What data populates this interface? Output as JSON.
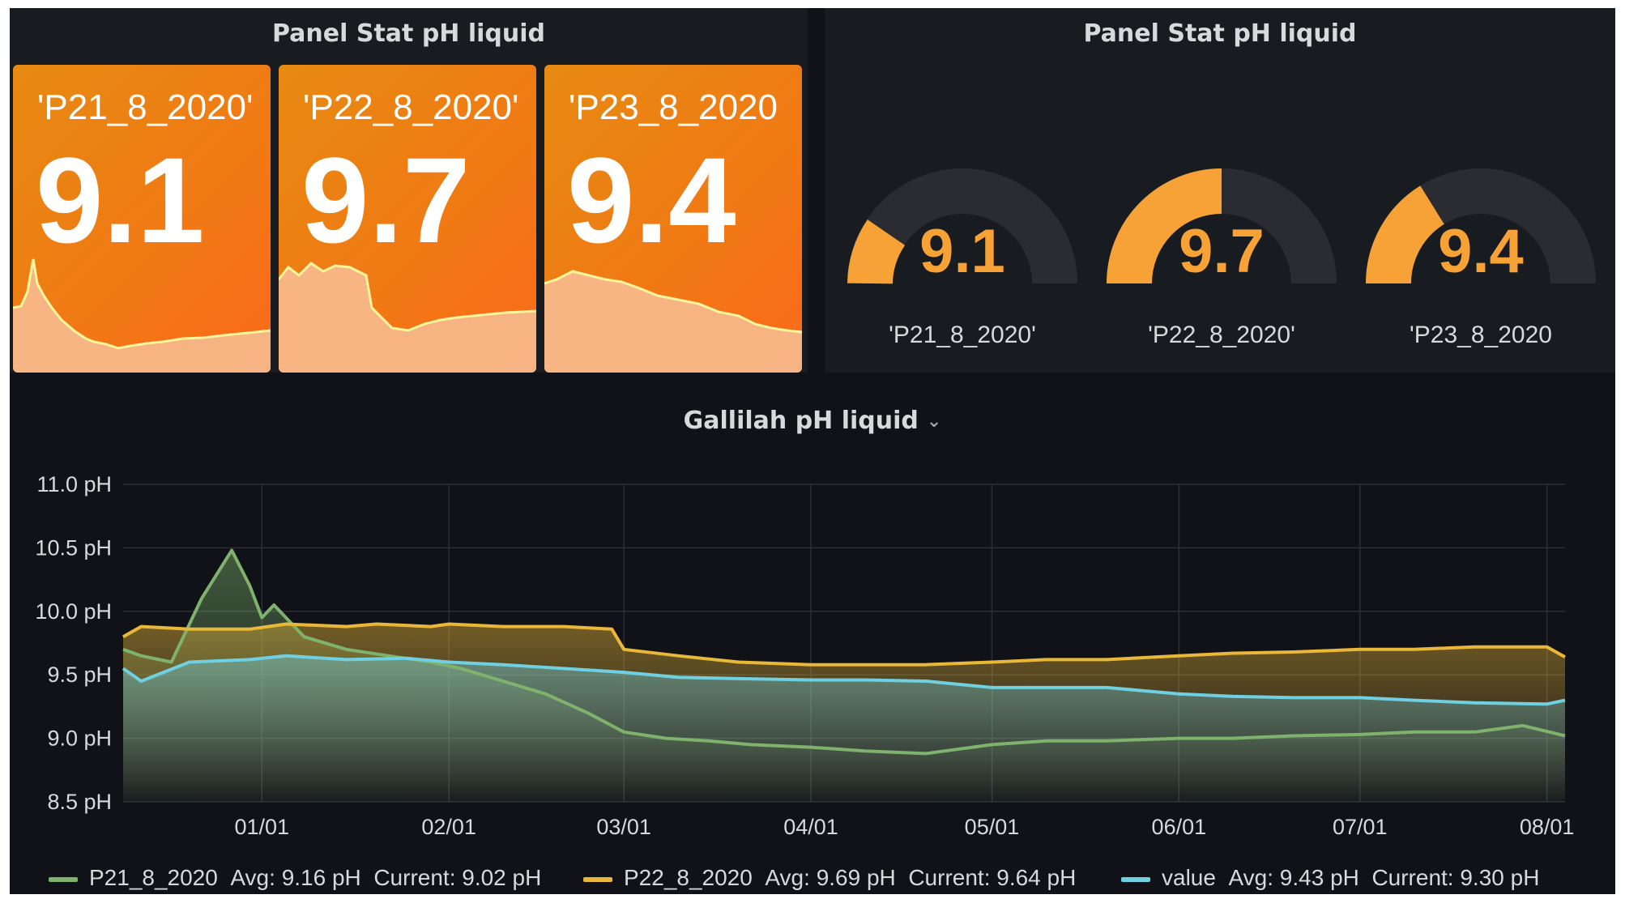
{
  "stat_panel": {
    "title": "Panel Stat pH liquid",
    "cards": [
      {
        "name": "'P21_8_2020'",
        "value": "9.1"
      },
      {
        "name": "'P22_8_2020'",
        "value": "9.7"
      },
      {
        "name": "'P23_8_2020",
        "value": "9.4"
      }
    ]
  },
  "gauge_panel": {
    "title": "Panel Stat pH liquid",
    "gauges": [
      {
        "name": "'P21_8_2020'",
        "value": "9.1",
        "fill_fraction": 0.2
      },
      {
        "name": "'P22_8_2020'",
        "value": "9.7",
        "fill_fraction": 0.55
      },
      {
        "name": "'P23_8_2020",
        "value": "9.4",
        "fill_fraction": 0.35
      }
    ]
  },
  "graph_panel": {
    "title": "Gallilah pH liquid",
    "chevron_icon": "chevron-down-icon"
  },
  "colors": {
    "background": "#111217",
    "panel": "#181b1f",
    "stat_orange": "#f07a14",
    "gauge_orange": "#f7a236",
    "sparkline": "#fff59d",
    "series_green": "#7eb26d",
    "series_yellow": "#eab839",
    "series_blue": "#6ed0e0"
  },
  "chart_data": {
    "type": "line",
    "title": "Gallilah pH liquid",
    "xlabel": "",
    "ylabel": "",
    "x_ticks": [
      "01/01",
      "02/01",
      "03/01",
      "04/01",
      "05/01",
      "06/01",
      "07/01",
      "08/01"
    ],
    "y_ticks": [
      "8.5 pH",
      "9.0 pH",
      "9.5 pH",
      "10.0 pH",
      "10.5 pH",
      "11.0 pH"
    ],
    "ylim": [
      8.5,
      11.0
    ],
    "xlim": [
      "2019-12-09",
      "2020-08-04"
    ],
    "grid": true,
    "legend_position": "bottom",
    "series": [
      {
        "name": "P21_8_2020",
        "color": "#7eb26d",
        "avg_label": "Avg: 9.16 pH",
        "current_label": "Current: 9.02 pH",
        "x": [
          "2019-12-09",
          "2019-12-12",
          "2019-12-17",
          "2019-12-22",
          "2019-12-27",
          "2019-12-30",
          "2020-01-01",
          "2020-01-03",
          "2020-01-08",
          "2020-01-15",
          "2020-01-22",
          "2020-01-29",
          "2020-02-03",
          "2020-02-10",
          "2020-02-17",
          "2020-02-24",
          "2020-03-01",
          "2020-03-08",
          "2020-03-15",
          "2020-03-22",
          "2020-04-01",
          "2020-04-10",
          "2020-04-20",
          "2020-05-01",
          "2020-05-10",
          "2020-05-20",
          "2020-06-01",
          "2020-06-10",
          "2020-06-20",
          "2020-07-01",
          "2020-07-10",
          "2020-07-20",
          "2020-07-28",
          "2020-08-04"
        ],
        "y": [
          9.7,
          9.65,
          9.6,
          10.1,
          10.48,
          10.2,
          9.95,
          10.05,
          9.8,
          9.7,
          9.65,
          9.6,
          9.55,
          9.45,
          9.35,
          9.2,
          9.05,
          9.0,
          8.98,
          8.95,
          8.93,
          8.9,
          8.88,
          8.95,
          8.98,
          8.98,
          9.0,
          9.0,
          9.02,
          9.03,
          9.05,
          9.05,
          9.1,
          9.02
        ]
      },
      {
        "name": "P22_8_2020",
        "color": "#eab839",
        "avg_label": "Avg: 9.69 pH",
        "current_label": "Current: 9.64 pH",
        "x": [
          "2019-12-09",
          "2019-12-12",
          "2019-12-20",
          "2019-12-30",
          "2020-01-05",
          "2020-01-15",
          "2020-01-20",
          "2020-01-29",
          "2020-02-01",
          "2020-02-10",
          "2020-02-20",
          "2020-02-28",
          "2020-03-01",
          "2020-03-10",
          "2020-03-20",
          "2020-04-01",
          "2020-04-10",
          "2020-04-20",
          "2020-05-01",
          "2020-05-10",
          "2020-05-20",
          "2020-06-01",
          "2020-06-10",
          "2020-06-20",
          "2020-07-01",
          "2020-07-10",
          "2020-07-20",
          "2020-08-01",
          "2020-08-04"
        ],
        "y": [
          9.8,
          9.88,
          9.86,
          9.86,
          9.9,
          9.88,
          9.9,
          9.88,
          9.9,
          9.88,
          9.88,
          9.86,
          9.7,
          9.65,
          9.6,
          9.58,
          9.58,
          9.58,
          9.6,
          9.62,
          9.62,
          9.65,
          9.67,
          9.68,
          9.7,
          9.7,
          9.72,
          9.72,
          9.64
        ]
      },
      {
        "name": "value",
        "color": "#6ed0e0",
        "avg_label": "Avg: 9.43 pH",
        "current_label": "Current: 9.30 pH",
        "x": [
          "2019-12-09",
          "2019-12-12",
          "2019-12-20",
          "2019-12-30",
          "2020-01-05",
          "2020-01-15",
          "2020-01-25",
          "2020-02-01",
          "2020-02-10",
          "2020-02-20",
          "2020-03-01",
          "2020-03-10",
          "2020-03-20",
          "2020-04-01",
          "2020-04-10",
          "2020-04-20",
          "2020-05-01",
          "2020-05-10",
          "2020-05-20",
          "2020-06-01",
          "2020-06-10",
          "2020-06-20",
          "2020-07-01",
          "2020-07-10",
          "2020-07-20",
          "2020-08-01",
          "2020-08-04"
        ],
        "y": [
          9.55,
          9.45,
          9.6,
          9.62,
          9.65,
          9.62,
          9.63,
          9.6,
          9.58,
          9.55,
          9.52,
          9.48,
          9.47,
          9.46,
          9.46,
          9.45,
          9.4,
          9.4,
          9.4,
          9.35,
          9.33,
          9.32,
          9.32,
          9.3,
          9.28,
          9.27,
          9.3
        ]
      }
    ]
  }
}
